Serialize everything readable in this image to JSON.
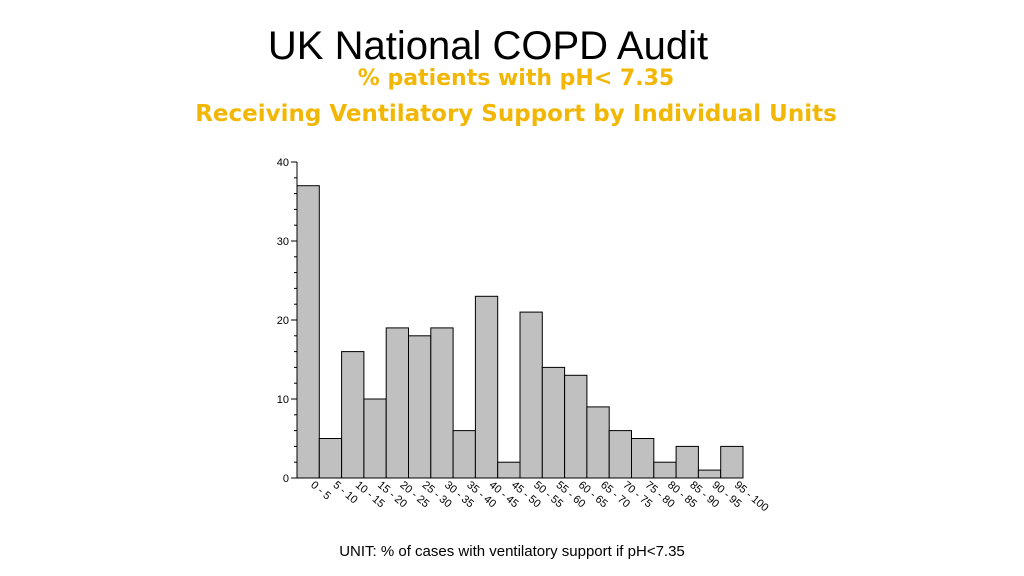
{
  "slide": {
    "title": "UK National COPD Audit",
    "subtitle_line1": "% patients with pH< 7.35",
    "subtitle_line2": "Receiving Ventilatory Support by Individual Units",
    "accent_color": "#F2B705"
  },
  "chart_data": {
    "type": "bar",
    "title": "",
    "xlabel": "UNIT: % of cases with ventilatory support if pH<7.35",
    "ylabel": "",
    "ylim": [
      0,
      40
    ],
    "yticks": [
      0,
      10,
      20,
      30,
      40
    ],
    "grid": false,
    "bar_color": "#C0C0C0",
    "categories": [
      "0 - 5",
      "5 - 10",
      "10 - 15",
      "15 - 20",
      "20 - 25",
      "25 - 30",
      "30 - 35",
      "35 - 40",
      "40 - 45",
      "45 - 50",
      "50 - 55",
      "55 - 60",
      "60 - 65",
      "65 - 70",
      "70 - 75",
      "75 - 80",
      "80 - 85",
      "85 - 90",
      "90 - 95",
      "95 - 100"
    ],
    "values": [
      37,
      5,
      16,
      10,
      19,
      18,
      19,
      6,
      23,
      2,
      21,
      14,
      13,
      9,
      6,
      5,
      2,
      4,
      1,
      4
    ]
  }
}
